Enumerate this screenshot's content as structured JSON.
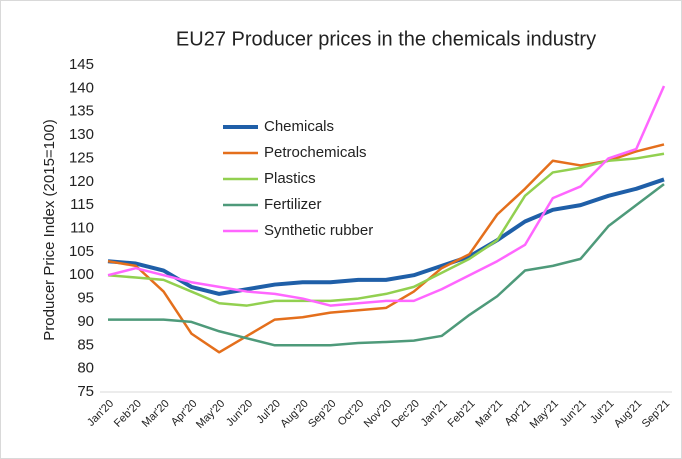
{
  "chart_data": {
    "type": "line",
    "title": "EU27 Producer prices in the chemicals industry",
    "y_label": "Producer Price Index (2015=100)",
    "categories": [
      "Jan'20",
      "Feb'20",
      "Mar'20",
      "Apr'20",
      "May'20",
      "Jun'20",
      "Jul'20",
      "Aug'20",
      "Sep'20",
      "Oct'20",
      "Nov'20",
      "Dec'20",
      "Jan'21",
      "Feb'21",
      "Mar'21",
      "Apr'21",
      "May'21",
      "Jun'21",
      "Jul'21",
      "Aug'21",
      "Sep'21"
    ],
    "series": [
      {
        "name": "Chemicals",
        "color": "#1f5fa8",
        "width": 4,
        "values": [
          103,
          102.5,
          101,
          97.5,
          96,
          97,
          98,
          98.5,
          98.5,
          99,
          99,
          100,
          102,
          104,
          107.5,
          111.5,
          114,
          115,
          117,
          118.5,
          120.5
        ]
      },
      {
        "name": "Petrochemicals",
        "color": "#e46f1c",
        "width": 2.5,
        "values": [
          103,
          102,
          96.5,
          87.5,
          83.5,
          87,
          90.5,
          91,
          92,
          92.5,
          93,
          96.5,
          101.5,
          104.5,
          113,
          118.5,
          124.5,
          123.5,
          124.5,
          126.5,
          128
        ]
      },
      {
        "name": "Plastics",
        "color": "#92d050",
        "width": 2.5,
        "values": [
          100,
          99.5,
          99,
          96.5,
          94,
          93.5,
          94.5,
          94.5,
          94.5,
          95,
          96,
          97.5,
          100.5,
          103.5,
          107.5,
          117,
          122,
          123,
          124.5,
          125,
          126
        ]
      },
      {
        "name": "Fertilizer",
        "color": "#4e9a7a",
        "width": 2.5,
        "values": [
          90.5,
          90.5,
          90.5,
          90,
          88,
          86.5,
          85,
          85,
          85,
          85.5,
          85.7,
          86,
          87,
          91.5,
          95.5,
          101,
          102,
          103.5,
          110.5,
          115,
          119.5
        ]
      },
      {
        "name": "Synthetic rubber",
        "color": "#ff66ff",
        "width": 2.5,
        "values": [
          100,
          101.5,
          100,
          98.5,
          97.5,
          96.5,
          96,
          95,
          93.5,
          94,
          94.5,
          94.5,
          97,
          100,
          103,
          106.5,
          116.5,
          119,
          125,
          127,
          140.5
        ]
      }
    ],
    "ylim": [
      75,
      145
    ],
    "yticks": [
      75,
      80,
      85,
      90,
      95,
      100,
      105,
      110,
      115,
      120,
      125,
      130,
      135,
      140,
      145
    ],
    "grid": false,
    "legend": "upper left"
  }
}
